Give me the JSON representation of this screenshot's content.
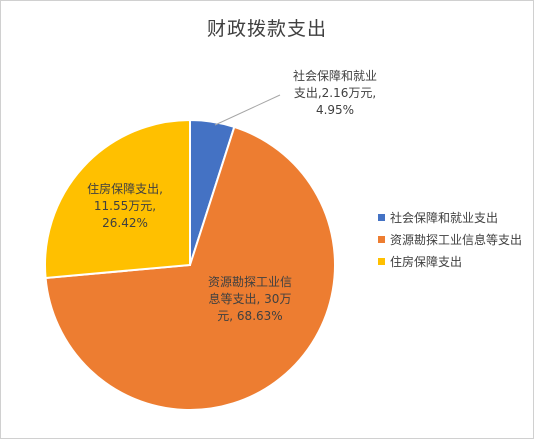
{
  "chart_data": {
    "type": "pie",
    "title": "财政拨款支出",
    "slices": [
      {
        "name": "社会保障和就业支出",
        "value": 2.16,
        "percent": "4.95%",
        "value_label": "2.16万元",
        "color": "#4472C4"
      },
      {
        "name": "资源勘探工业信息等支出",
        "value": 30,
        "percent": "68.63%",
        "value_label": "30万元",
        "color": "#ED7D31"
      },
      {
        "name": "住房保障支出",
        "value": 11.55,
        "percent": "26.42%",
        "value_label": "11.55万元",
        "color": "#FFC000"
      }
    ],
    "data_labels": [
      {
        "lines": [
          "社会保障和就业",
          "支出,2.16万元,",
          "4.95%"
        ]
      },
      {
        "lines": [
          "资源勘探工业信",
          "息等支出, 30万",
          "元, 68.63%"
        ]
      },
      {
        "lines": [
          "住房保障支出,",
          "11.55万元,",
          "26.42%"
        ]
      }
    ],
    "legend_position": "right"
  }
}
